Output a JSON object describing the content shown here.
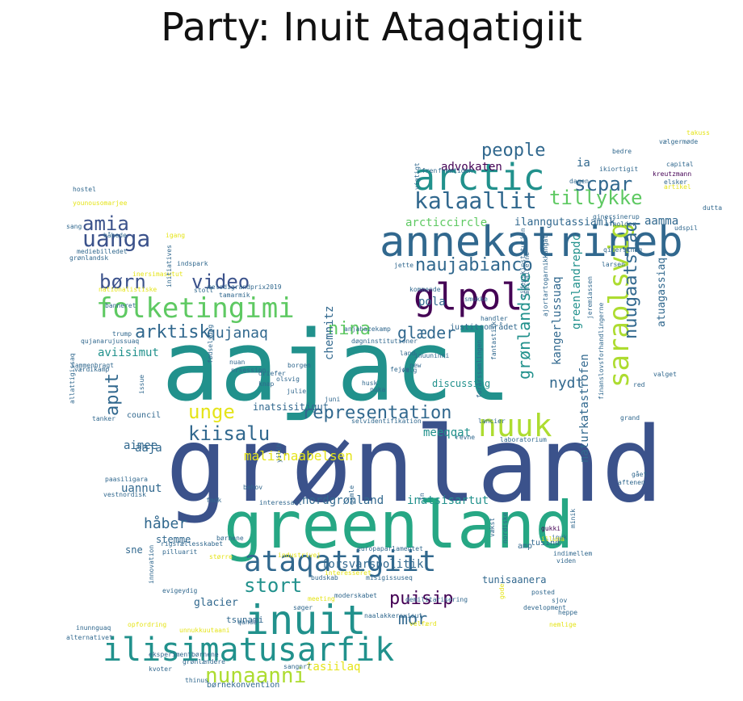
{
  "title": "Party: Inuit Ataqatigiit",
  "palette": {
    "dark_purple": "#440154",
    "indigo": "#3b528b",
    "blue": "#31688e",
    "teal": "#21918c",
    "green_teal": "#26a784",
    "green": "#5ec962",
    "yellow_green": "#addc30",
    "yellow": "#e5e419"
  },
  "words": [
    {
      "text": "grønland",
      "color": "#3b528b"
    },
    {
      "text": "aajacl",
      "color": "#21918c"
    },
    {
      "text": "greenland",
      "color": "#26a784"
    },
    {
      "text": "annekatrineb",
      "color": "#31688e"
    },
    {
      "text": "inuit",
      "color": "#21918c"
    },
    {
      "text": "arctic",
      "color": "#21918c"
    },
    {
      "text": "glpol",
      "color": "#440154"
    },
    {
      "text": "ilisimatusarfik",
      "color": "#21918c"
    },
    {
      "text": "ataqatigiit",
      "color": "#31688e"
    },
    {
      "text": "folketingimi",
      "color": "#5ec962"
    },
    {
      "text": "nuuk",
      "color": "#addc30"
    },
    {
      "text": "saraolsvig",
      "color": "#addc30"
    },
    {
      "text": "uanga",
      "color": "#3b528b"
    },
    {
      "text": "kalaallit",
      "color": "#31688e"
    },
    {
      "text": "nunaanni",
      "color": "#addc30"
    },
    {
      "text": "amia",
      "color": "#3b528b"
    },
    {
      "text": "børn",
      "color": "#3b528b"
    },
    {
      "text": "video",
      "color": "#3b528b"
    },
    {
      "text": "tillykke",
      "color": "#5ec962"
    },
    {
      "text": "scpar",
      "color": "#31688e"
    },
    {
      "text": "people",
      "color": "#31688e"
    },
    {
      "text": "naujabianco",
      "color": "#31688e"
    },
    {
      "text": "nuugaatsiaq",
      "color": "#31688e"
    },
    {
      "text": "grønlandske",
      "color": "#21918c"
    },
    {
      "text": "arktisk",
      "color": "#31688e"
    },
    {
      "text": "nina",
      "color": "#5ec962"
    },
    {
      "text": "glæder",
      "color": "#31688e"
    },
    {
      "text": "qujanaq",
      "color": "#31688e"
    },
    {
      "text": "aput",
      "color": "#31688e"
    },
    {
      "text": "representation",
      "color": "#31688e"
    },
    {
      "text": "unge",
      "color": "#e5e419"
    },
    {
      "text": "kiisalu",
      "color": "#31688e"
    },
    {
      "text": "puisip",
      "color": "#440154"
    },
    {
      "text": "mor",
      "color": "#31688e"
    },
    {
      "text": "stort",
      "color": "#21918c"
    },
    {
      "text": "nydt",
      "color": "#31688e"
    },
    {
      "text": "aamma",
      "color": "#31688e"
    },
    {
      "text": "ia",
      "color": "#31688e"
    },
    {
      "text": "advokaten",
      "color": "#440154"
    },
    {
      "text": "arcticcircle",
      "color": "#5ec962"
    },
    {
      "text": "ilanngutassiamik",
      "color": "#31688e"
    },
    {
      "text": "atuagassiaq",
      "color": "#31688e"
    },
    {
      "text": "greenlandrepdc",
      "color": "#21918c"
    },
    {
      "text": "kangerlussuaq",
      "color": "#31688e"
    },
    {
      "text": "naturkatastrofen",
      "color": "#31688e"
    },
    {
      "text": "pola",
      "color": "#31688e"
    },
    {
      "text": "chemnitz",
      "color": "#31688e"
    },
    {
      "text": "aviisimut",
      "color": "#21918c"
    },
    {
      "text": "maliinaabelsen",
      "color": "#e5e419"
    },
    {
      "text": "meeqqat",
      "color": "#21918c"
    },
    {
      "text": "aaja",
      "color": "#31688e"
    },
    {
      "text": "aimee",
      "color": "#31688e"
    },
    {
      "text": "uannut",
      "color": "#31688e"
    },
    {
      "text": "nordgrønland",
      "color": "#31688e"
    },
    {
      "text": "inatsisartut",
      "color": "#21918c"
    },
    {
      "text": "håber",
      "color": "#31688e"
    },
    {
      "text": "stemme",
      "color": "#31688e"
    },
    {
      "text": "sne",
      "color": "#31688e"
    },
    {
      "text": "forsvarspolitik",
      "color": "#31688e"
    },
    {
      "text": "glacier",
      "color": "#31688e"
    },
    {
      "text": "tasiilaq",
      "color": "#e5e419"
    },
    {
      "text": "tunisaanera",
      "color": "#31688e"
    },
    {
      "text": "inatsisitigut",
      "color": "#31688e"
    },
    {
      "text": "discussing",
      "color": "#21918c"
    },
    {
      "text": "council",
      "color": "#31688e"
    },
    {
      "text": "tsunami",
      "color": "#31688e"
    },
    {
      "text": "børnekonvention",
      "color": "#31688e"
    },
    {
      "text": "tusind",
      "color": "#31688e"
    },
    {
      "text": "amp",
      "color": "#31688e"
    },
    {
      "text": "justitsområdet",
      "color": "#31688e"
    },
    {
      "text": "capital",
      "color": "#31688e"
    },
    {
      "text": "kreutzmann",
      "color": "#440154"
    },
    {
      "text": "dutta",
      "color": "#31688e"
    },
    {
      "text": "udspil",
      "color": "#31688e"
    },
    {
      "text": "afholder",
      "color": "#31688e"
    },
    {
      "text": "qinersinerup",
      "color": "#31688e"
    },
    {
      "text": "larsen",
      "color": "#31688e"
    },
    {
      "text": "takuss",
      "color": "#e5e419"
    },
    {
      "text": "vælgermøde",
      "color": "#31688e"
    },
    {
      "text": "bedre",
      "color": "#31688e"
    },
    {
      "text": "ikiortigit",
      "color": "#31688e"
    },
    {
      "text": "dagen",
      "color": "#31688e"
    },
    {
      "text": "elsker",
      "color": "#31688e"
    },
    {
      "text": "hostel",
      "color": "#31688e"
    },
    {
      "text": "younousomarjee",
      "color": "#e5e419"
    },
    {
      "text": "sang",
      "color": "#31688e"
    },
    {
      "text": "håbede",
      "color": "#31688e"
    },
    {
      "text": "igang",
      "color": "#e5e419"
    },
    {
      "text": "mediebilledet",
      "color": "#31688e"
    },
    {
      "text": "grønlandsk",
      "color": "#31688e"
    },
    {
      "text": "indspark",
      "color": "#31688e"
    },
    {
      "text": "inersimasutut",
      "color": "#e5e419"
    },
    {
      "text": "initiatives",
      "color": "#31688e"
    },
    {
      "text": "nationalistiske",
      "color": "#e5e419"
    },
    {
      "text": "stolt",
      "color": "#31688e"
    },
    {
      "text": "melodigrandprix2019",
      "color": "#31688e"
    },
    {
      "text": "tamarmik",
      "color": "#31688e"
    },
    {
      "text": "jette",
      "color": "#31688e"
    },
    {
      "text": "kommende",
      "color": "#31688e"
    },
    {
      "text": "smukke",
      "color": "#31688e"
    },
    {
      "text": "trump",
      "color": "#31688e"
    },
    {
      "text": "nrsession",
      "color": "#31688e"
    },
    {
      "text": "borgen",
      "color": "#31688e"
    },
    {
      "text": "olsvig",
      "color": "#31688e"
    },
    {
      "text": "julie",
      "color": "#31688e"
    },
    {
      "text": "knap",
      "color": "#31688e"
    },
    {
      "text": "husk",
      "color": "#31688e"
    },
    {
      "text": "nuka",
      "color": "#31688e"
    },
    {
      "text": "juni",
      "color": "#31688e"
    },
    {
      "text": "selvidentifikation",
      "color": "#31688e"
    },
    {
      "text": "laboratorium",
      "color": "#31688e"
    },
    {
      "text": "new",
      "color": "#31688e"
    },
    {
      "text": "fejre",
      "color": "#31688e"
    },
    {
      "text": "handler",
      "color": "#31688e"
    },
    {
      "text": "inuuninni",
      "color": "#31688e"
    },
    {
      "text": "valget",
      "color": "#31688e"
    },
    {
      "text": "red",
      "color": "#31688e"
    },
    {
      "text": "grand",
      "color": "#31688e"
    },
    {
      "text": "aftenen",
      "color": "#31688e"
    },
    {
      "text": "gået",
      "color": "#31688e"
    },
    {
      "text": "revne",
      "color": "#31688e"
    },
    {
      "text": "interessant",
      "color": "#31688e"
    },
    {
      "text": "behov",
      "color": "#31688e"
    },
    {
      "text": "fmdk",
      "color": "#31688e"
    },
    {
      "text": "paasiligara",
      "color": "#31688e"
    },
    {
      "text": "vestnordisk",
      "color": "#31688e"
    },
    {
      "text": "tanker",
      "color": "#31688e"
    },
    {
      "text": "issue",
      "color": "#31688e"
    },
    {
      "text": "fødselsdag",
      "color": "#31688e"
    },
    {
      "text": "nuan",
      "color": "#31688e"
    },
    {
      "text": "rigsfællesskabet",
      "color": "#31688e"
    },
    {
      "text": "pilluarit",
      "color": "#31688e"
    },
    {
      "text": "børnene",
      "color": "#31688e"
    },
    {
      "text": "større",
      "color": "#e5e419"
    },
    {
      "text": "industrivej",
      "color": "#e5e419"
    },
    {
      "text": "europaparlamentet",
      "color": "#31688e"
    },
    {
      "text": "interesseret",
      "color": "#e5e419"
    },
    {
      "text": "indimellem",
      "color": "#31688e"
    },
    {
      "text": "gukki",
      "color": "#440154"
    },
    {
      "text": "inuk",
      "color": "#31688e"
    },
    {
      "text": "viden",
      "color": "#31688e"
    },
    {
      "text": "budskab",
      "color": "#31688e"
    },
    {
      "text": "misigissuseq",
      "color": "#31688e"
    },
    {
      "text": "posted",
      "color": "#31688e"
    },
    {
      "text": "sjov",
      "color": "#31688e"
    },
    {
      "text": "søger",
      "color": "#31688e"
    },
    {
      "text": "moderskabet",
      "color": "#31688e"
    },
    {
      "text": "meeting",
      "color": "#e5e419"
    },
    {
      "text": "heppe",
      "color": "#31688e"
    },
    {
      "text": "naalakkersuisut",
      "color": "#31688e"
    },
    {
      "text": "development",
      "color": "#31688e"
    },
    {
      "text": "nemlige",
      "color": "#e5e419"
    },
    {
      "text": "velfærd",
      "color": "#e5e419"
    },
    {
      "text": "opfordring",
      "color": "#e5e419"
    },
    {
      "text": "unnukkuutaani",
      "color": "#e5e419"
    },
    {
      "text": "inunnguaq",
      "color": "#31688e"
    },
    {
      "text": "alternativet",
      "color": "#31688e"
    },
    {
      "text": "eksperimentbørnene",
      "color": "#31688e"
    },
    {
      "text": "grønlændere",
      "color": "#31688e"
    },
    {
      "text": "kvoter",
      "color": "#31688e"
    },
    {
      "text": "thinus",
      "color": "#31688e"
    },
    {
      "text": "sangnr7",
      "color": "#31688e"
    },
    {
      "text": "evigeydig",
      "color": "#31688e"
    },
    {
      "text": "demilitarisering",
      "color": "#31688e"
    },
    {
      "text": "anjahazekamp",
      "color": "#31688e"
    },
    {
      "text": "døgninstitutioner",
      "color": "#31688e"
    },
    {
      "text": "qujanarujussuaq",
      "color": "#31688e"
    },
    {
      "text": "sammenbragt",
      "color": "#31688e"
    },
    {
      "text": "værdikamp",
      "color": "#31688e"
    },
    {
      "text": "allattigissaq",
      "color": "#31688e"
    },
    {
      "text": "forårssamlingen",
      "color": "#31688e"
    },
    {
      "text": "finanslovsforhandlingerne",
      "color": "#31688e"
    },
    {
      "text": "ajortartogarnikkangat",
      "color": "#31688e"
    },
    {
      "text": "jeremiassen",
      "color": "#31688e"
    },
    {
      "text": "videnskinstitution",
      "color": "#31688e"
    },
    {
      "text": "fantastisk",
      "color": "#31688e"
    },
    {
      "text": "vigtigt",
      "color": "#31688e"
    },
    {
      "text": "fremtiden",
      "color": "#31688e"
    },
    {
      "text": "valg",
      "color": "#31688e"
    },
    {
      "text": "qanda",
      "color": "#31688e"
    },
    {
      "text": "banneret",
      "color": "#31688e"
    },
    {
      "text": "innovation",
      "color": "#31688e"
    },
    {
      "text": "yilih",
      "color": "#31688e"
    },
    {
      "text": "fn",
      "color": "#31688e"
    },
    {
      "text": "vækst",
      "color": "#31688e"
    },
    {
      "text": "gode",
      "color": "#e5e419"
    },
    {
      "text": "lancier",
      "color": "#31688e"
    },
    {
      "text": "anstalterne",
      "color": "#31688e"
    },
    {
      "text": "artikel",
      "color": "#e5e419"
    },
    {
      "text": "driefer",
      "color": "#31688e"
    },
    {
      "text": "fren",
      "color": "#31688e"
    },
    {
      "text": "qinersineq",
      "color": "#31688e"
    },
    {
      "text": "gamle",
      "color": "#31688e"
    },
    {
      "text": "illuna",
      "color": "#e5e419"
    },
    {
      "text": "nordiske",
      "color": "#31688e"
    },
    {
      "text": "land",
      "color": "#31688e"
    },
    {
      "text": "minik",
      "color": "#31688e"
    },
    {
      "text": "sikkert",
      "color": "#e5e419"
    }
  ]
}
